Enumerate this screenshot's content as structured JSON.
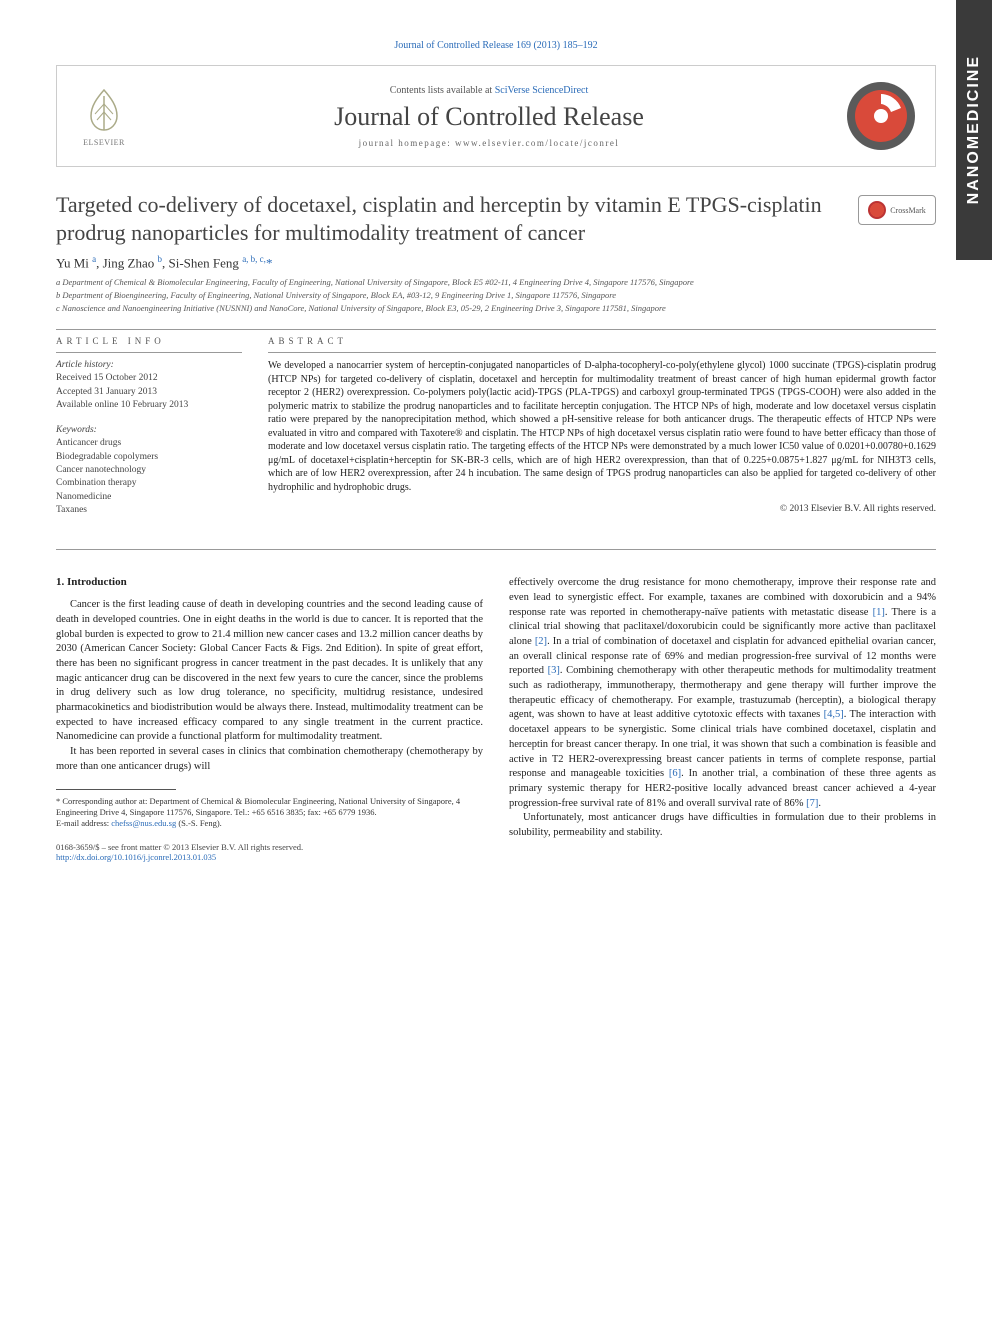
{
  "side_tab": "NANOMEDICINE",
  "top_link": "Journal of Controlled Release 169 (2013) 185–192",
  "header": {
    "contents_prefix": "Contents lists available at ",
    "contents_link": "SciVerse ScienceDirect",
    "journal_title": "Journal of Controlled Release",
    "homepage": "journal homepage: www.elsevier.com/locate/jconrel",
    "publisher": "ELSEVIER"
  },
  "crossmark_label": "CrossMark",
  "article": {
    "title": "Targeted co-delivery of docetaxel, cisplatin and herceptin by vitamin E TPGS-cisplatin prodrug nanoparticles for multimodality treatment of cancer",
    "authors_html": "Yu Mi <sup>a</sup>, Jing Zhao <sup>b</sup>, Si-Shen Feng <sup>a, b, c,</sup><span class='star'>*</span>",
    "affiliations": [
      "a Department of Chemical & Biomolecular Engineering, Faculty of Engineering, National University of Singapore, Block E5 #02-11, 4 Engineering Drive 4, Singapore 117576, Singapore",
      "b Department of Bioengineering, Faculty of Engineering, National University of Singapore, Block EA, #03-12, 9 Engineering Drive 1, Singapore 117576, Singapore",
      "c Nanoscience and Nanoengineering Initiative (NUSNNI) and NanoCore, National University of Singapore, Block E3, 05-29, 2 Engineering Drive 3, Singapore 117581, Singapore"
    ]
  },
  "info": {
    "heading": "article info",
    "history_label": "Article history:",
    "received": "Received 15 October 2012",
    "accepted": "Accepted 31 January 2013",
    "online": "Available online 10 February 2013",
    "keywords_label": "Keywords:",
    "keywords": [
      "Anticancer drugs",
      "Biodegradable copolymers",
      "Cancer nanotechnology",
      "Combination therapy",
      "Nanomedicine",
      "Taxanes"
    ]
  },
  "abstract": {
    "heading": "abstract",
    "text": "We developed a nanocarrier system of herceptin-conjugated nanoparticles of D-alpha-tocopheryl-co-poly(ethylene glycol) 1000 succinate (TPGS)-cisplatin prodrug (HTCP NPs) for targeted co-delivery of cisplatin, docetaxel and herceptin for multimodality treatment of breast cancer of high human epidermal growth factor receptor 2 (HER2) overexpression. Co-polymers poly(lactic acid)-TPGS (PLA-TPGS) and carboxyl group-terminated TPGS (TPGS-COOH) were also added in the polymeric matrix to stabilize the prodrug nanoparticles and to facilitate herceptin conjugation. The HTCP NPs of high, moderate and low docetaxel versus cisplatin ratio were prepared by the nanoprecipitation method, which showed a pH-sensitive release for both anticancer drugs. The therapeutic effects of HTCP NPs were evaluated in vitro and compared with Taxotere® and cisplatin. The HTCP NPs of high docetaxel versus cisplatin ratio were found to have better efficacy than those of moderate and low docetaxel versus cisplatin ratio. The targeting effects of the HTCP NPs were demonstrated by a much lower IC50 value of 0.0201+0.00780+0.1629 μg/mL of docetaxel+cisplatin+herceptin for SK-BR-3 cells, which are of high HER2 overexpression, than that of 0.225+0.0875+1.827 μg/mL for NIH3T3 cells, which are of low HER2 overexpression, after 24 h incubation. The same design of TPGS prodrug nanoparticles can also be applied for targeted co-delivery of other hydrophilic and hydrophobic drugs.",
    "copyright": "© 2013 Elsevier B.V. All rights reserved."
  },
  "intro": {
    "heading": "1. Introduction",
    "col1_p1": "Cancer is the first leading cause of death in developing countries and the second leading cause of death in developed countries. One in eight deaths in the world is due to cancer. It is reported that the global burden is expected to grow to 21.4 million new cancer cases and 13.2 million cancer deaths by 2030 (American Cancer Society: Global Cancer Facts & Figs. 2nd Edition). In spite of great effort, there has been no significant progress in cancer treatment in the past decades. It is unlikely that any magic anticancer drug can be discovered in the next few years to cure the cancer, since the problems in drug delivery such as low drug tolerance, no specificity, multidrug resistance, undesired pharmacokinetics and biodistribution would be always there. Instead, multimodality treatment can be expected to have increased efficacy compared to any single treatment in the current practice. Nanomedicine can provide a functional platform for multimodality treatment.",
    "col1_p2": "It has been reported in several cases in clinics that combination chemotherapy (chemotherapy by more than one anticancer drugs) will",
    "col2_p1": "effectively overcome the drug resistance for mono chemotherapy, improve their response rate and even lead to synergistic effect. For example, taxanes are combined with doxorubicin and a 94% response rate was reported in chemotherapy-naïve patients with metastatic disease <span class='cite'>[1]</span>. There is a clinical trial showing that paclitaxel/doxorubicin could be significantly more active than paclitaxel alone <span class='cite'>[2]</span>. In a trial of combination of docetaxel and cisplatin for advanced epithelial ovarian cancer, an overall clinical response rate of 69% and median progression-free survival of 12 months were reported <span class='cite'>[3]</span>. Combining chemotherapy with other therapeutic methods for multimodality treatment such as radiotherapy, immunotherapy, thermotherapy and gene therapy will further improve the therapeutic efficacy of chemotherapy. For example, trastuzumab (herceptin), a biological therapy agent, was shown to have at least additive cytotoxic effects with taxanes <span class='cite'>[4,5]</span>. The interaction with docetaxel appears to be synergistic. Some clinical trials have combined docetaxel, cisplatin and herceptin for breast cancer therapy. In one trial, it was shown that such a combination is feasible and active in T2 HER2-overexpressing breast cancer patients in terms of complete response, partial response and manageable toxicities <span class='cite'>[6]</span>. In another trial, a combination of these three agents as primary systemic therapy for HER2-positive locally advanced breast cancer achieved a 4-year progression-free survival rate of 81% and overall survival rate of 86% <span class='cite'>[7]</span>.",
    "col2_p2": "Unfortunately, most anticancer drugs have difficulties in formulation due to their problems in solubility, permeability and stability."
  },
  "footnotes": {
    "corresponding": "* Corresponding author at: Department of Chemical & Biomolecular Engineering, National University of Singapore, 4 Engineering Drive 4, Singapore 117576, Singapore. Tel.: +65 6516 3835; fax: +65 6779 1936.",
    "email_label": "E-mail address: ",
    "email": "chefss@nus.edu.sg",
    "email_name": " (S.-S. Feng)."
  },
  "footer": {
    "line1": "0168-3659/$ – see front matter © 2013 Elsevier B.V. All rights reserved.",
    "doi": "http://dx.doi.org/10.1016/j.jconrel.2013.01.035"
  },
  "colors": {
    "link": "#2a6bb8",
    "text": "#222",
    "heading_gray": "#555",
    "side_tab_bg": "#3a3a3a",
    "logo_red": "#d94a3a",
    "logo_dark": "#5a5a5a"
  }
}
